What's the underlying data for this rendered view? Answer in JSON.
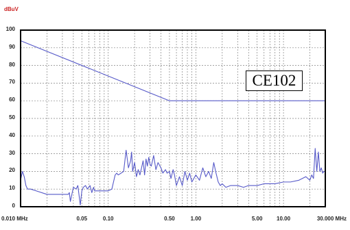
{
  "chart_data": {
    "type": "line",
    "title": "",
    "ylabel": "dBuV",
    "xlabel": "",
    "x_scale": "log",
    "xlim": [
      0.01,
      30.0
    ],
    "ylim": [
      0,
      100
    ],
    "grid": true,
    "y_ticks": [
      "100",
      "90",
      "80",
      "70",
      "60",
      "50",
      "40",
      "30",
      "20",
      "10",
      "0"
    ],
    "x_ticks": [
      {
        "value": 0.01,
        "label": "0.010 MHz"
      },
      {
        "value": 0.05,
        "label": "0.05"
      },
      {
        "value": 0.1,
        "label": "0.10"
      },
      {
        "value": 0.5,
        "label": "0.50"
      },
      {
        "value": 1.0,
        "label": "1.00"
      },
      {
        "value": 5.0,
        "label": "5.00"
      },
      {
        "value": 10.0,
        "label": "10.00"
      },
      {
        "value": 30.0,
        "label": "30.000 MHz"
      }
    ],
    "annotation": "CE102",
    "colors": {
      "axis": "#000000",
      "grid": "#808080",
      "trace": "#5558c8",
      "unit": "#cc2222"
    },
    "series": [
      {
        "role": "limit",
        "x": [
          0.01,
          0.5,
          30.0
        ],
        "y": [
          94,
          60,
          60
        ]
      },
      {
        "role": "emission",
        "x": [
          0.01,
          0.0105,
          0.011,
          0.0115,
          0.012,
          0.013,
          0.015,
          0.02,
          0.03,
          0.035,
          0.036,
          0.037,
          0.04,
          0.043,
          0.045,
          0.048,
          0.05,
          0.052,
          0.055,
          0.058,
          0.06,
          0.062,
          0.065,
          0.068,
          0.07,
          0.08,
          0.09,
          0.1,
          0.11,
          0.12,
          0.125,
          0.13,
          0.14,
          0.15,
          0.16,
          0.17,
          0.18,
          0.185,
          0.19,
          0.2,
          0.21,
          0.22,
          0.23,
          0.24,
          0.25,
          0.26,
          0.27,
          0.28,
          0.29,
          0.3,
          0.31,
          0.33,
          0.35,
          0.37,
          0.4,
          0.42,
          0.45,
          0.47,
          0.5,
          0.52,
          0.55,
          0.57,
          0.6,
          0.65,
          0.7,
          0.75,
          0.8,
          0.85,
          0.9,
          1.0,
          1.1,
          1.2,
          1.3,
          1.4,
          1.5,
          1.6,
          1.7,
          1.8,
          1.9,
          2.0,
          2.2,
          2.5,
          3.0,
          3.5,
          4.0,
          5.0,
          6.0,
          7.0,
          8.0,
          10.0,
          12.0,
          15.0,
          18.0,
          20.0,
          21.0,
          22.0,
          23.0,
          24.0,
          25.0,
          26.0,
          27.0,
          28.0,
          29.0,
          30.0
        ],
        "y": [
          15,
          20,
          17,
          12,
          10,
          10,
          9,
          7,
          7,
          7,
          8,
          3,
          11,
          10,
          12,
          1,
          9,
          11,
          12,
          10,
          11,
          12,
          8,
          11,
          9,
          9,
          9,
          9,
          10,
          18,
          19,
          18,
          19,
          20,
          32,
          22,
          26,
          31,
          20,
          25,
          17,
          21,
          18,
          22,
          26,
          18,
          27,
          23,
          28,
          24,
          23,
          29,
          21,
          25,
          22,
          19,
          21,
          19,
          20,
          16,
          21,
          18,
          12,
          17,
          12,
          20,
          15,
          19,
          14,
          18,
          15,
          22,
          17,
          20,
          16,
          25,
          19,
          14,
          12,
          13,
          11,
          12,
          12,
          11,
          12,
          12,
          13,
          13,
          13,
          14,
          14,
          15,
          17,
          15,
          18,
          16,
          33,
          20,
          31,
          20,
          22,
          19,
          20,
          20
        ]
      }
    ]
  }
}
